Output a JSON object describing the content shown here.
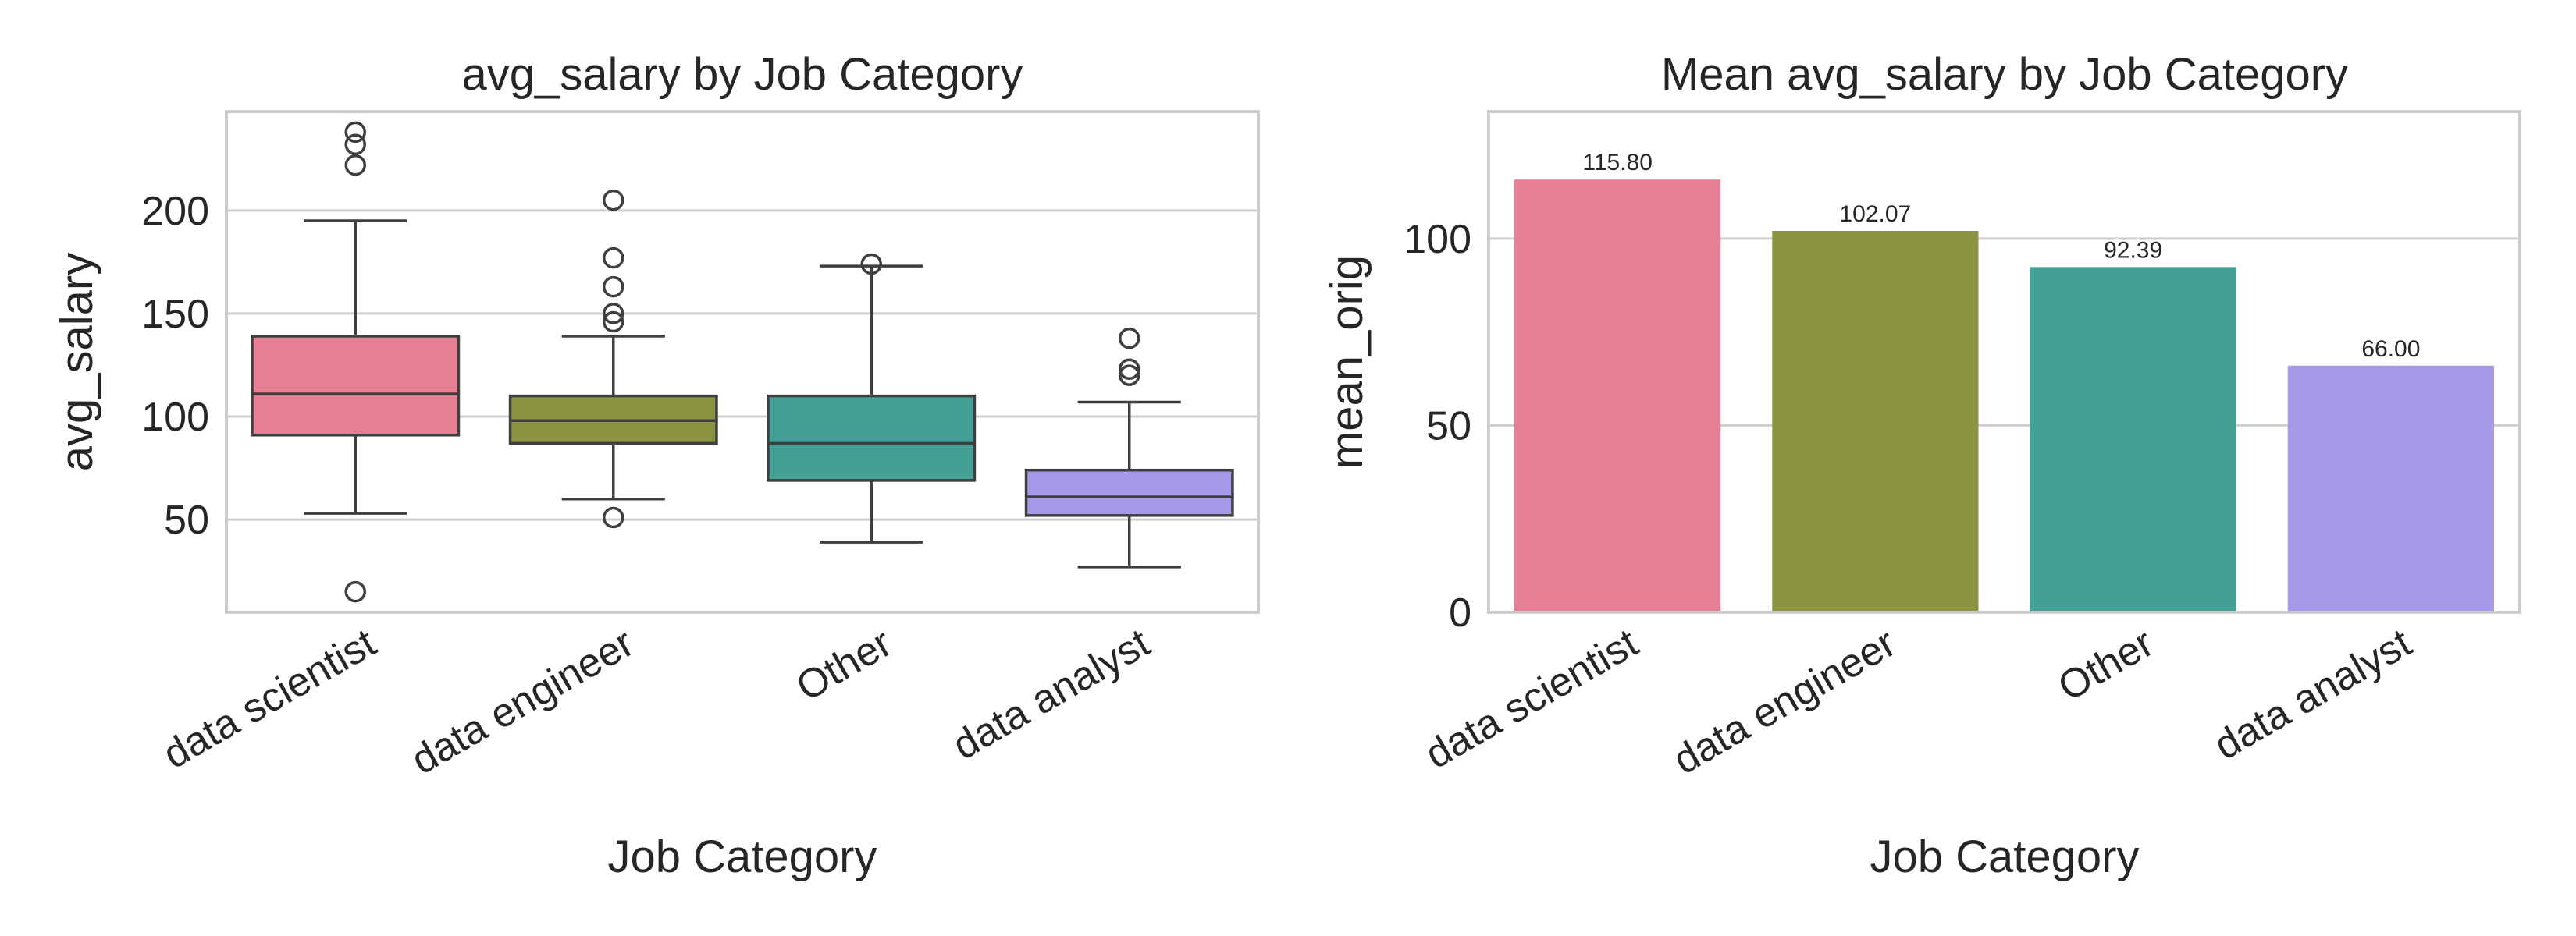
{
  "chart_data": [
    {
      "type": "box",
      "title": "avg_salary by Job Category",
      "xlabel": "Job Category",
      "ylabel": "avg_salary",
      "ylim": [
        5,
        248
      ],
      "yticks": [
        "50",
        "100",
        "150",
        "200"
      ],
      "ytick_values": [
        50,
        100,
        150,
        200
      ],
      "categories": [
        "data scientist",
        "data engineer",
        "Other",
        "data analyst"
      ],
      "grid": true,
      "series": [
        {
          "category": "data scientist",
          "whisker_low": 53,
          "q1": 91,
          "median": 111,
          "q3": 139,
          "whisker_high": 195,
          "outliers": [
            15,
            222,
            232,
            238
          ],
          "color": "#e67f93"
        },
        {
          "category": "data engineer",
          "whisker_low": 60,
          "q1": 87,
          "median": 98,
          "q3": 110,
          "whisker_high": 139,
          "outliers": [
            51,
            146,
            150,
            163,
            177,
            205
          ],
          "color": "#8c9442"
        },
        {
          "category": "Other",
          "whisker_low": 39,
          "q1": 69,
          "median": 87,
          "q3": 110,
          "whisker_high": 173,
          "outliers": [
            174
          ],
          "color": "#43a097"
        },
        {
          "category": "data analyst",
          "whisker_low": 27,
          "q1": 52,
          "median": 61,
          "q3": 74,
          "whisker_high": 107,
          "outliers": [
            120,
            123,
            138
          ],
          "color": "#a899e8"
        }
      ]
    },
    {
      "type": "bar",
      "title": "Mean avg_salary by Job Category",
      "xlabel": "Job Category",
      "ylabel": "mean_orig",
      "ylim": [
        0,
        134
      ],
      "yticks": [
        "0",
        "50",
        "100"
      ],
      "ytick_values": [
        0,
        50,
        100
      ],
      "categories": [
        "data scientist",
        "data engineer",
        "Other",
        "data analyst"
      ],
      "values": [
        115.8,
        102.07,
        92.39,
        66.0
      ],
      "value_labels": [
        "115.80",
        "102.07",
        "92.39",
        "66.00"
      ],
      "colors": [
        "#e67f93",
        "#8c9442",
        "#43a097",
        "#a899e8"
      ],
      "grid": true
    }
  ]
}
